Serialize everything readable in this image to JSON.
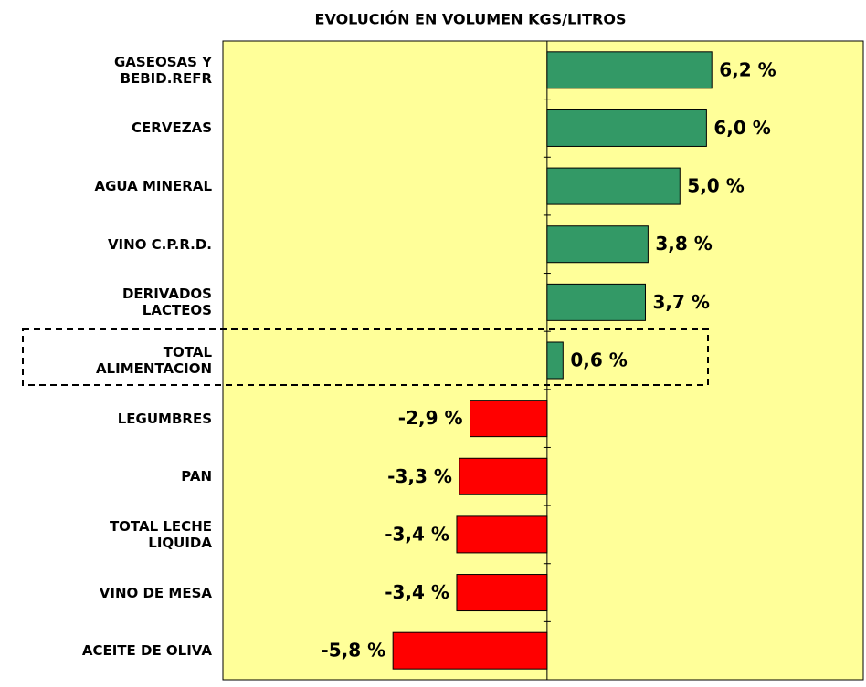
{
  "chart_data": {
    "type": "hbar",
    "title": "EVOLUCIÓN EN VOLUMEN KGS/LITROS",
    "categories": [
      "GASEOSAS Y\nBEBID.REFR",
      "CERVEZAS",
      "AGUA MINERAL",
      "VINO C.P.R.D.",
      "DERIVADOS\nLACTEOS",
      "TOTAL\nALIMENTACION",
      "LEGUMBRES",
      "PAN",
      "TOTAL LECHE\nLIQUIDA",
      "VINO DE MESA",
      "ACEITE DE OLIVA"
    ],
    "values": [
      6.2,
      6.0,
      5.0,
      3.8,
      3.7,
      0.6,
      -2.9,
      -3.3,
      -3.4,
      -3.4,
      -5.8
    ],
    "value_labels": [
      "6,2 %",
      "6,0 %",
      "5,0 %",
      "3,8 %",
      "3,7 %",
      "0,6 %",
      "-2,9 %",
      "-3,3 %",
      "-3,4 %",
      "-3,4 %",
      "-5,8 %"
    ],
    "colors": [
      "#339966",
      "#339966",
      "#339966",
      "#339966",
      "#339966",
      "#339966",
      "#ff0000",
      "#ff0000",
      "#ff0000",
      "#ff0000",
      "#ff0000"
    ],
    "xlim": [
      -12.2,
      11.9
    ]
  }
}
